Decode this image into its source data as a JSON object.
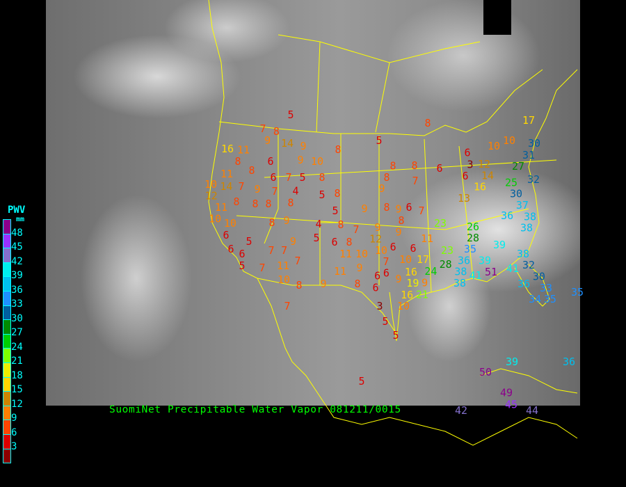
{
  "title": "SuomiNet Precipitable Water Vapor 081211/0015",
  "legend": {
    "title": "PWV",
    "unit": "mm",
    "labels": [
      "48",
      "45",
      "42",
      "39",
      "36",
      "33",
      "30",
      "27",
      "24",
      "21",
      "18",
      "15",
      "12",
      "9",
      "6",
      "3"
    ],
    "colors": [
      "#8b008b",
      "#9932ff",
      "#8470cc",
      "#00eeee",
      "#00c0ee",
      "#1e90ff",
      "#005f9f",
      "#008b00",
      "#00cd00",
      "#7fff00",
      "#eeee00",
      "#ffd700",
      "#cd8500",
      "#ff8000",
      "#ff4500",
      "#dd0000",
      "#8b0000"
    ]
  },
  "boundary_color": "#ffff00",
  "stations": [
    5,
    7,
    8,
    9,
    14,
    9,
    8,
    5,
    8,
    16,
    11,
    8,
    6,
    9,
    10,
    8,
    11,
    6,
    7,
    5,
    8,
    8,
    8,
    6,
    8,
    7,
    10,
    14,
    7,
    9,
    7,
    4,
    5,
    8,
    12,
    11,
    8,
    8,
    8,
    8,
    9,
    5,
    9,
    8,
    6,
    7,
    9,
    8,
    10,
    10,
    8,
    9,
    4,
    8,
    7,
    9,
    9,
    6,
    5,
    9,
    5,
    6,
    8,
    12,
    6,
    6,
    11,
    7,
    7,
    6,
    6,
    5,
    7,
    11,
    7,
    11,
    10,
    10,
    7,
    6,
    10,
    17,
    10,
    8,
    9,
    11,
    9,
    8,
    6,
    6,
    9,
    16,
    16,
    9,
    3,
    10,
    5,
    5,
    7,
    5,
    6,
    3,
    6,
    10,
    10,
    12,
    14,
    16,
    13,
    27,
    31,
    30,
    32,
    25,
    30,
    23,
    26,
    28,
    37,
    36,
    38,
    38,
    39,
    35,
    36,
    39,
    23,
    28,
    24,
    38,
    38,
    41,
    51,
    41,
    38,
    32,
    30,
    36,
    33,
    34,
    35,
    35,
    17,
    21,
    19,
    50,
    39,
    36,
    42,
    49,
    45,
    44
  ]
}
